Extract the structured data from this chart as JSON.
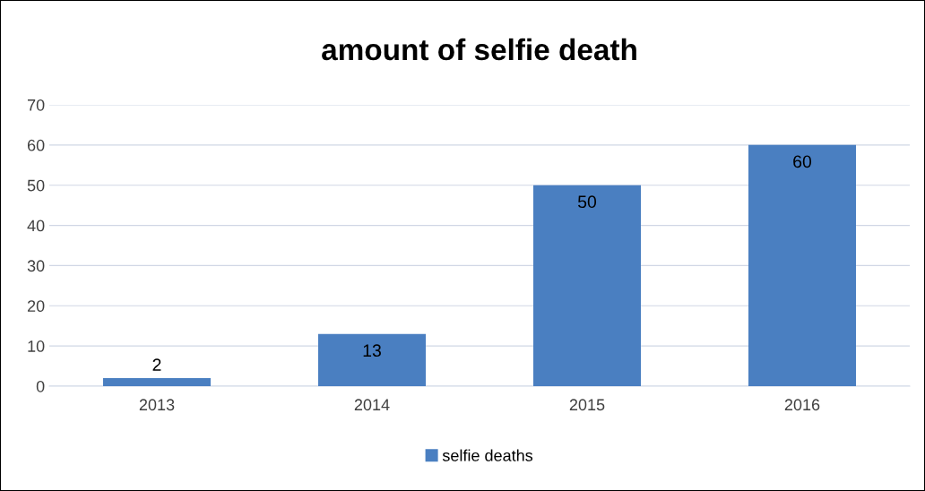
{
  "chart_data": {
    "type": "bar",
    "title": "amount of selfie death",
    "categories": [
      "2013",
      "2014",
      "2015",
      "2016"
    ],
    "series": [
      {
        "name": "selfie deaths",
        "color": "#4a7fc1",
        "values": [
          2,
          13,
          50,
          60
        ]
      }
    ],
    "ylim": [
      0,
      70
    ],
    "yticks": [
      0,
      10,
      20,
      30,
      40,
      50,
      60,
      70
    ],
    "grid": "y",
    "legend": "bottom",
    "data_labels": true
  }
}
